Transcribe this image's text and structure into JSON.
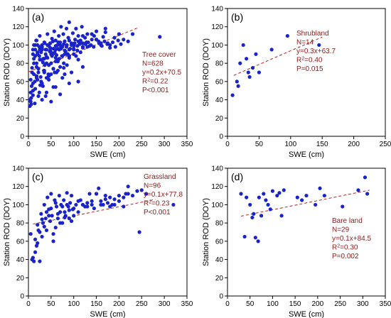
{
  "chart_data": [
    {
      "type": "scatter",
      "panel_label": "(a)",
      "xlabel": "SWE (cm)",
      "ylabel": "Station ROD (DOY)",
      "xlim": [
        0,
        350
      ],
      "ylim": [
        0,
        140
      ],
      "xticks": [
        0,
        50,
        100,
        150,
        200,
        250,
        300,
        350
      ],
      "yticks": [
        0,
        20,
        40,
        60,
        80,
        100,
        120,
        140
      ],
      "annotation": [
        "Tree cover",
        "N=628",
        "y=0.2x+70.5",
        "R²=0.22",
        "P<0.001"
      ],
      "trend": {
        "slope": 0.2,
        "intercept": 70.5,
        "x_range": [
          0,
          240
        ]
      },
      "points_x": [
        3,
        5,
        6,
        8,
        10,
        12,
        14,
        15,
        17,
        18,
        20,
        22,
        24,
        25,
        27,
        28,
        30,
        32,
        33,
        35,
        36,
        38,
        40,
        42,
        44,
        45,
        47,
        48,
        50,
        52,
        54,
        55,
        57,
        58,
        60,
        62,
        64,
        65,
        67,
        68,
        70,
        72,
        74,
        75,
        77,
        78,
        80,
        82,
        84,
        85,
        87,
        88,
        90,
        92,
        95,
        98,
        100,
        103,
        105,
        108,
        110,
        113,
        115,
        118,
        120,
        125,
        128,
        130,
        135,
        140,
        145,
        150,
        155,
        160,
        165,
        170,
        175,
        180,
        190,
        200,
        210,
        220,
        230,
        290,
        5,
        8,
        10,
        12,
        15,
        18,
        20,
        22,
        25,
        28,
        30,
        32,
        35,
        38,
        40,
        42,
        45,
        48,
        50,
        52,
        55,
        58,
        60,
        62,
        65,
        68,
        70,
        72,
        75,
        78,
        80,
        85,
        90,
        95,
        100,
        105,
        110,
        115,
        120,
        130,
        140,
        150,
        160,
        170,
        5,
        7,
        10,
        12,
        15,
        18,
        20,
        24,
        28,
        30,
        34,
        38,
        40,
        45,
        50,
        55,
        60,
        65,
        70,
        75,
        80,
        85,
        90,
        95,
        100,
        110,
        120,
        3,
        6,
        10,
        14,
        18,
        22,
        26,
        30,
        35,
        40,
        45,
        50,
        55,
        60,
        65,
        70,
        80,
        90,
        100,
        110,
        120,
        10,
        15,
        20,
        25,
        30,
        35,
        40,
        45,
        50,
        60,
        70,
        80,
        90,
        100,
        12,
        18,
        24,
        30,
        36,
        42,
        48,
        54,
        60,
        66,
        72,
        78,
        84,
        90,
        96,
        102,
        108,
        114,
        120,
        126,
        132,
        138,
        144,
        150,
        156,
        162,
        168,
        174,
        180,
        186,
        192,
        198,
        204,
        210,
        216,
        222,
        228
      ],
      "points_y": [
        40,
        62,
        35,
        75,
        90,
        85,
        60,
        95,
        105,
        80,
        100,
        70,
        88,
        110,
        65,
        92,
        98,
        55,
        85,
        103,
        78,
        95,
        87,
        112,
        68,
        99,
        93,
        102,
        80,
        107,
        90,
        96,
        115,
        70,
        105,
        89,
        100,
        84,
        110,
        95,
        103,
        120,
        88,
        98,
        112,
        75,
        104,
        93,
        118,
        100,
        90,
        108,
        125,
        96,
        102,
        113,
        99,
        106,
        118,
        94,
        110,
        101,
        105,
        120,
        98,
        108,
        103,
        112,
        99,
        106,
        110,
        115,
        104,
        100,
        109,
        118,
        102,
        97,
        108,
        112,
        106,
        104,
        112,
        109,
        48,
        70,
        58,
        80,
        88,
        66,
        92,
        74,
        84,
        60,
        96,
        81,
        72,
        90,
        64,
        86,
        78,
        94,
        68,
        88,
        74,
        92,
        82,
        70,
        96,
        85,
        76,
        98,
        88,
        80,
        104,
        90,
        86,
        100,
        95,
        88,
        104,
        92,
        110,
        98,
        112,
        106,
        102,
        114,
        38,
        55,
        45,
        68,
        52,
        76,
        62,
        48,
        84,
        58,
        72,
        44,
        80,
        66,
        92,
        54,
        86,
        72,
        100,
        64,
        94,
        78,
        88,
        70,
        96,
        84,
        102,
        33,
        42,
        50,
        36,
        64,
        44,
        56,
        40,
        70,
        48,
        62,
        38,
        74,
        54,
        82,
        46,
        68,
        58,
        90,
        60,
        76,
        95,
        100,
        90,
        95,
        100,
        85,
        95,
        100,
        90,
        95,
        100,
        90,
        95,
        100,
        100,
        105,
        98,
        95,
        102,
        100,
        97,
        104,
        99,
        103,
        96,
        101,
        98,
        105,
        100,
        102,
        99,
        104,
        97,
        101,
        103,
        100,
        98,
        106,
        102,
        99,
        104,
        101,
        100,
        103,
        98,
        105,
        101
      ],
      "pos": {
        "x": 0,
        "y": 0
      }
    },
    {
      "type": "scatter",
      "panel_label": "(b)",
      "xlabel": "SWE (cm)",
      "ylabel": "Station ROD (DOY)",
      "xlim": [
        0,
        250
      ],
      "ylim": [
        0,
        140
      ],
      "xticks": [
        0,
        50,
        100,
        150,
        200,
        250
      ],
      "yticks": [
        0,
        20,
        40,
        60,
        80,
        100,
        120,
        140
      ],
      "annotation": [
        "Shrubland",
        "N=14",
        "y=0.3x+63.7",
        "R²=0.40",
        "P=0.015"
      ],
      "trend": {
        "slope": 0.3,
        "intercept": 63.7,
        "x_range": [
          10,
          150
        ]
      },
      "points_x": [
        8,
        15,
        17,
        20,
        25,
        30,
        33,
        35,
        40,
        45,
        50,
        70,
        95,
        145
      ],
      "points_y": [
        45,
        60,
        55,
        80,
        100,
        85,
        70,
        65,
        75,
        90,
        70,
        95,
        110,
        100
      ],
      "pos": {
        "x": 1,
        "y": 0
      }
    },
    {
      "type": "scatter",
      "panel_label": "(c)",
      "xlabel": "SWE (cm)",
      "ylabel": "Station ROD (DOY)",
      "xlim": [
        0,
        350
      ],
      "ylim": [
        0,
        140
      ],
      "xticks": [
        0,
        50,
        100,
        150,
        200,
        250,
        300,
        350
      ],
      "yticks": [
        0,
        20,
        40,
        60,
        80,
        100,
        120,
        140
      ],
      "annotation": [
        "Grassland",
        "N=96",
        "y=0.1x+77.8",
        "R²=0.23",
        "P<0.001"
      ],
      "trend": {
        "slope": 0.1,
        "intercept": 77.8,
        "x_range": [
          10,
          280
        ]
      },
      "points_x": [
        5,
        8,
        10,
        12,
        15,
        18,
        20,
        22,
        25,
        28,
        30,
        32,
        35,
        38,
        40,
        42,
        45,
        48,
        50,
        52,
        55,
        58,
        60,
        62,
        65,
        68,
        70,
        72,
        75,
        78,
        80,
        82,
        85,
        88,
        90,
        92,
        95,
        98,
        100,
        105,
        110,
        115,
        120,
        125,
        130,
        135,
        140,
        145,
        150,
        155,
        160,
        165,
        170,
        175,
        180,
        185,
        190,
        200,
        210,
        215,
        220,
        245,
        320,
        15,
        20,
        25,
        30,
        35,
        40,
        45,
        50,
        55,
        60,
        65,
        70,
        75,
        80,
        85,
        90,
        95,
        100,
        110,
        120,
        130,
        140,
        150,
        160,
        170,
        180,
        190,
        200,
        210,
        220,
        230,
        240,
        250,
        260
      ],
      "points_y": [
        68,
        40,
        42,
        38,
        62,
        55,
        78,
        72,
        38,
        90,
        65,
        80,
        100,
        85,
        72,
        108,
        95,
        82,
        112,
        88,
        60,
        105,
        75,
        98,
        85,
        110,
        92,
        100,
        80,
        105,
        92,
        88,
        113,
        98,
        85,
        102,
        110,
        95,
        88,
        100,
        92,
        105,
        100,
        98,
        102,
        112,
        100,
        96,
        112,
        118,
        104,
        100,
        110,
        102,
        98,
        100,
        106,
        110,
        98,
        112,
        120,
        70,
        100,
        48,
        58,
        70,
        84,
        76,
        92,
        88,
        96,
        68,
        102,
        90,
        80,
        98,
        86,
        100,
        94,
        82,
        96,
        104,
        100,
        98,
        104,
        112,
        100,
        106,
        108,
        100,
        104,
        108,
        112,
        110,
        115,
        116,
        112
      ],
      "pos": {
        "x": 0,
        "y": 1
      }
    },
    {
      "type": "scatter",
      "panel_label": "(d)",
      "xlabel": "SWE (cm)",
      "ylabel": "Station ROD (DOY)",
      "xlim": [
        0,
        350
      ],
      "ylim": [
        0,
        140
      ],
      "xticks": [
        0,
        50,
        100,
        150,
        200,
        250,
        300,
        350
      ],
      "yticks": [
        0,
        20,
        40,
        60,
        80,
        100,
        120,
        140
      ],
      "annotation": [
        "Bare land",
        "N=29",
        "y=0.1x+84.5",
        "R²=0.30",
        "P=0.002"
      ],
      "trend": {
        "slope": 0.1,
        "intercept": 84.5,
        "x_range": [
          30,
          315
        ]
      },
      "points_x": [
        30,
        38,
        42,
        50,
        55,
        58,
        62,
        68,
        70,
        75,
        80,
        85,
        90,
        95,
        100,
        110,
        115,
        120,
        125,
        155,
        165,
        175,
        195,
        205,
        215,
        255,
        290,
        305,
        310
      ],
      "points_y": [
        112,
        65,
        108,
        100,
        86,
        90,
        64,
        60,
        108,
        88,
        112,
        105,
        100,
        95,
        115,
        110,
        113,
        88,
        116,
        108,
        105,
        110,
        100,
        118,
        110,
        98,
        116,
        130,
        112
      ],
      "pos": {
        "x": 1,
        "y": 1
      }
    }
  ]
}
